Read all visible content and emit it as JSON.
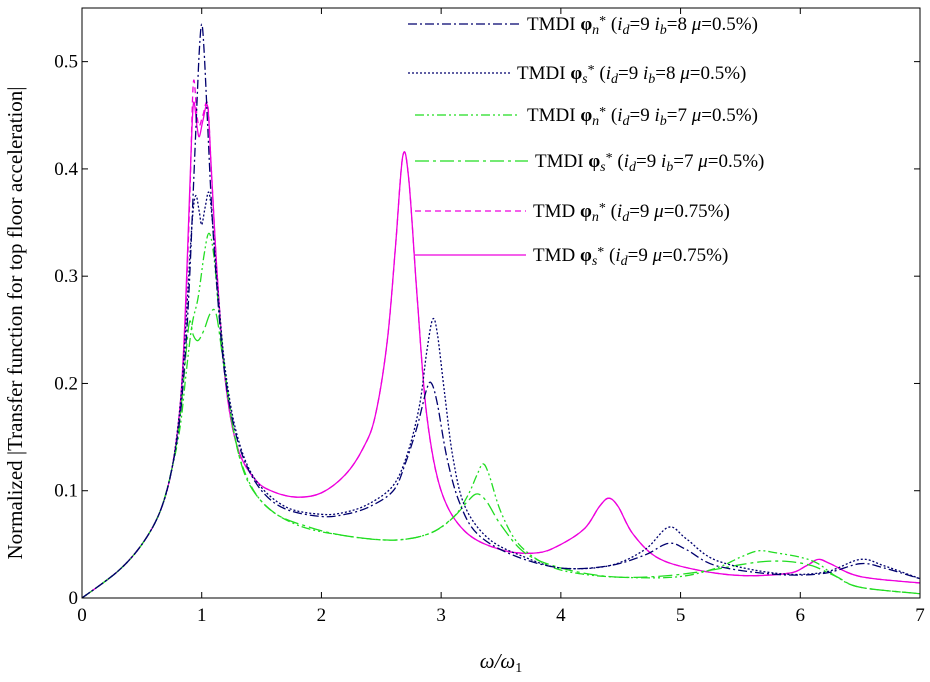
{
  "chart_data": {
    "type": "line",
    "title": "",
    "xlabel": "ω/ω1",
    "ylabel": "Normalized |Transfer function for top floor acceleration|",
    "xlim": [
      0,
      7
    ],
    "ylim": [
      0,
      0.55
    ],
    "xticks": [
      "0",
      "1",
      "2",
      "3",
      "4",
      "5",
      "6",
      "7"
    ],
    "yticks": [
      "0",
      "0.1",
      "0.2",
      "0.3",
      "0.4",
      "0.5"
    ],
    "grid": false,
    "legend_position": "top-right",
    "series": [
      {
        "name": "TMDI φn* (id=9 ib=8 μ=0.5%)",
        "color": "#00006e",
        "dash": "9,3,2,3",
        "points": [
          [
            0,
            0
          ],
          [
            0.3,
            0.025
          ],
          [
            0.5,
            0.05
          ],
          [
            0.65,
            0.08
          ],
          [
            0.75,
            0.12
          ],
          [
            0.82,
            0.17
          ],
          [
            0.87,
            0.24
          ],
          [
            0.9,
            0.3
          ],
          [
            0.93,
            0.38
          ],
          [
            0.96,
            0.46
          ],
          [
            0.98,
            0.51
          ],
          [
            1.0,
            0.535
          ],
          [
            1.02,
            0.51
          ],
          [
            1.05,
            0.44
          ],
          [
            1.08,
            0.37
          ],
          [
            1.12,
            0.3
          ],
          [
            1.18,
            0.22
          ],
          [
            1.25,
            0.17
          ],
          [
            1.35,
            0.13
          ],
          [
            1.5,
            0.1
          ],
          [
            1.7,
            0.083
          ],
          [
            2.0,
            0.076
          ],
          [
            2.2,
            0.078
          ],
          [
            2.4,
            0.085
          ],
          [
            2.6,
            0.1
          ],
          [
            2.7,
            0.125
          ],
          [
            2.8,
            0.16
          ],
          [
            2.88,
            0.195
          ],
          [
            2.92,
            0.2
          ],
          [
            2.97,
            0.18
          ],
          [
            3.05,
            0.13
          ],
          [
            3.15,
            0.09
          ],
          [
            3.3,
            0.06
          ],
          [
            3.6,
            0.04
          ],
          [
            4.0,
            0.028
          ],
          [
            4.4,
            0.03
          ],
          [
            4.7,
            0.04
          ],
          [
            4.9,
            0.051
          ],
          [
            5.05,
            0.045
          ],
          [
            5.3,
            0.03
          ],
          [
            5.8,
            0.022
          ],
          [
            6.2,
            0.023
          ],
          [
            6.5,
            0.032
          ],
          [
            6.7,
            0.028
          ],
          [
            7.0,
            0.018
          ]
        ]
      },
      {
        "name": "TMDI φs* (id=9 ib=8 μ=0.5%)",
        "color": "#00006e",
        "dash": "2,2",
        "points": [
          [
            0,
            0
          ],
          [
            0.3,
            0.025
          ],
          [
            0.5,
            0.05
          ],
          [
            0.65,
            0.08
          ],
          [
            0.75,
            0.12
          ],
          [
            0.82,
            0.18
          ],
          [
            0.87,
            0.26
          ],
          [
            0.92,
            0.35
          ],
          [
            0.95,
            0.375
          ],
          [
            0.98,
            0.36
          ],
          [
            1.0,
            0.348
          ],
          [
            1.03,
            0.365
          ],
          [
            1.06,
            0.378
          ],
          [
            1.09,
            0.35
          ],
          [
            1.14,
            0.28
          ],
          [
            1.2,
            0.21
          ],
          [
            1.3,
            0.15
          ],
          [
            1.45,
            0.11
          ],
          [
            1.7,
            0.085
          ],
          [
            2.0,
            0.078
          ],
          [
            2.2,
            0.08
          ],
          [
            2.4,
            0.088
          ],
          [
            2.6,
            0.105
          ],
          [
            2.72,
            0.135
          ],
          [
            2.82,
            0.18
          ],
          [
            2.88,
            0.23
          ],
          [
            2.93,
            0.26
          ],
          [
            2.97,
            0.245
          ],
          [
            3.03,
            0.19
          ],
          [
            3.1,
            0.13
          ],
          [
            3.2,
            0.085
          ],
          [
            3.4,
            0.055
          ],
          [
            3.7,
            0.038
          ],
          [
            4.0,
            0.028
          ],
          [
            4.4,
            0.03
          ],
          [
            4.7,
            0.045
          ],
          [
            4.9,
            0.066
          ],
          [
            5.05,
            0.055
          ],
          [
            5.3,
            0.035
          ],
          [
            5.8,
            0.023
          ],
          [
            6.2,
            0.024
          ],
          [
            6.5,
            0.036
          ],
          [
            6.7,
            0.03
          ],
          [
            7.0,
            0.018
          ]
        ]
      },
      {
        "name": "TMDI φn* (id=9 ib=7 μ=0.5%)",
        "color": "#22dd22",
        "dash": "9,3,2,3,2,3",
        "points": [
          [
            0,
            0
          ],
          [
            0.3,
            0.025
          ],
          [
            0.5,
            0.05
          ],
          [
            0.65,
            0.08
          ],
          [
            0.75,
            0.12
          ],
          [
            0.82,
            0.16
          ],
          [
            0.87,
            0.21
          ],
          [
            0.92,
            0.255
          ],
          [
            0.97,
            0.28
          ],
          [
            1.02,
            0.32
          ],
          [
            1.06,
            0.34
          ],
          [
            1.1,
            0.32
          ],
          [
            1.15,
            0.26
          ],
          [
            1.22,
            0.19
          ],
          [
            1.32,
            0.13
          ],
          [
            1.5,
            0.09
          ],
          [
            1.8,
            0.068
          ],
          [
            2.2,
            0.058
          ],
          [
            2.6,
            0.054
          ],
          [
            2.9,
            0.06
          ],
          [
            3.1,
            0.075
          ],
          [
            3.22,
            0.095
          ],
          [
            3.3,
            0.115
          ],
          [
            3.35,
            0.125
          ],
          [
            3.4,
            0.115
          ],
          [
            3.5,
            0.08
          ],
          [
            3.65,
            0.05
          ],
          [
            3.9,
            0.03
          ],
          [
            4.2,
            0.022
          ],
          [
            4.6,
            0.019
          ],
          [
            5.0,
            0.02
          ],
          [
            5.3,
            0.028
          ],
          [
            5.5,
            0.038
          ],
          [
            5.65,
            0.044
          ],
          [
            5.8,
            0.042
          ],
          [
            6.0,
            0.038
          ],
          [
            6.15,
            0.032
          ],
          [
            6.3,
            0.02
          ],
          [
            6.5,
            0.01
          ],
          [
            7.0,
            0.004
          ]
        ]
      },
      {
        "name": "TMDI φs* (id=9 ib=7 μ=0.5%)",
        "color": "#22dd22",
        "dash": "14,4,3,4",
        "points": [
          [
            0,
            0
          ],
          [
            0.3,
            0.025
          ],
          [
            0.5,
            0.05
          ],
          [
            0.65,
            0.08
          ],
          [
            0.75,
            0.12
          ],
          [
            0.82,
            0.17
          ],
          [
            0.87,
            0.23
          ],
          [
            0.9,
            0.258
          ],
          [
            0.93,
            0.245
          ],
          [
            0.97,
            0.24
          ],
          [
            1.02,
            0.25
          ],
          [
            1.07,
            0.265
          ],
          [
            1.12,
            0.265
          ],
          [
            1.18,
            0.22
          ],
          [
            1.26,
            0.16
          ],
          [
            1.38,
            0.11
          ],
          [
            1.6,
            0.08
          ],
          [
            1.9,
            0.066
          ],
          [
            2.2,
            0.058
          ],
          [
            2.6,
            0.054
          ],
          [
            2.9,
            0.06
          ],
          [
            3.1,
            0.075
          ],
          [
            3.22,
            0.09
          ],
          [
            3.3,
            0.097
          ],
          [
            3.38,
            0.09
          ],
          [
            3.5,
            0.068
          ],
          [
            3.7,
            0.042
          ],
          [
            4.0,
            0.028
          ],
          [
            4.4,
            0.02
          ],
          [
            4.8,
            0.02
          ],
          [
            5.2,
            0.025
          ],
          [
            5.5,
            0.031
          ],
          [
            5.7,
            0.034
          ],
          [
            5.9,
            0.034
          ],
          [
            6.1,
            0.03
          ],
          [
            6.3,
            0.02
          ],
          [
            6.5,
            0.01
          ],
          [
            7.0,
            0.004
          ]
        ]
      },
      {
        "name": "TMD φn* (id=9 μ=0.75%)",
        "color": "#ee00dd",
        "dash": "6,4",
        "points": [
          [
            0,
            0
          ],
          [
            0.3,
            0.025
          ],
          [
            0.5,
            0.05
          ],
          [
            0.65,
            0.08
          ],
          [
            0.75,
            0.12
          ],
          [
            0.82,
            0.18
          ],
          [
            0.86,
            0.25
          ],
          [
            0.9,
            0.37
          ],
          [
            0.93,
            0.48
          ],
          [
            0.96,
            0.45
          ],
          [
            0.98,
            0.44
          ],
          [
            1.01,
            0.45
          ],
          [
            1.05,
            0.46
          ],
          [
            1.08,
            0.4
          ],
          [
            1.13,
            0.3
          ],
          [
            1.2,
            0.2
          ],
          [
            1.3,
            0.14
          ],
          [
            1.45,
            0.11
          ],
          [
            1.6,
            0.099
          ],
          [
            1.8,
            0.094
          ],
          [
            2.0,
            0.098
          ],
          [
            2.2,
            0.115
          ],
          [
            2.35,
            0.14
          ],
          [
            2.45,
            0.17
          ],
          [
            2.55,
            0.24
          ],
          [
            2.62,
            0.33
          ],
          [
            2.68,
            0.412
          ],
          [
            2.73,
            0.39
          ],
          [
            2.8,
            0.28
          ],
          [
            2.88,
            0.17
          ],
          [
            3.0,
            0.1
          ],
          [
            3.2,
            0.062
          ],
          [
            3.5,
            0.045
          ],
          [
            3.8,
            0.042
          ],
          [
            4.0,
            0.05
          ],
          [
            4.2,
            0.065
          ],
          [
            4.32,
            0.085
          ],
          [
            4.4,
            0.093
          ],
          [
            4.48,
            0.085
          ],
          [
            4.6,
            0.06
          ],
          [
            4.8,
            0.038
          ],
          [
            5.1,
            0.027
          ],
          [
            5.5,
            0.021
          ],
          [
            5.9,
            0.023
          ],
          [
            6.05,
            0.03
          ],
          [
            6.15,
            0.036
          ],
          [
            6.25,
            0.032
          ],
          [
            6.5,
            0.02
          ],
          [
            7.0,
            0.014
          ]
        ]
      },
      {
        "name": "TMD φs* (id=9 μ=0.75%)",
        "color": "#ee00dd",
        "dash": "",
        "points": [
          [
            0,
            0
          ],
          [
            0.3,
            0.025
          ],
          [
            0.5,
            0.05
          ],
          [
            0.65,
            0.08
          ],
          [
            0.75,
            0.12
          ],
          [
            0.82,
            0.18
          ],
          [
            0.86,
            0.26
          ],
          [
            0.9,
            0.38
          ],
          [
            0.93,
            0.46
          ],
          [
            0.96,
            0.44
          ],
          [
            0.98,
            0.43
          ],
          [
            1.01,
            0.445
          ],
          [
            1.05,
            0.458
          ],
          [
            1.08,
            0.4
          ],
          [
            1.13,
            0.3
          ],
          [
            1.2,
            0.2
          ],
          [
            1.3,
            0.14
          ],
          [
            1.45,
            0.11
          ],
          [
            1.6,
            0.099
          ],
          [
            1.8,
            0.094
          ],
          [
            2.0,
            0.098
          ],
          [
            2.2,
            0.115
          ],
          [
            2.35,
            0.14
          ],
          [
            2.45,
            0.17
          ],
          [
            2.55,
            0.24
          ],
          [
            2.62,
            0.33
          ],
          [
            2.68,
            0.412
          ],
          [
            2.73,
            0.39
          ],
          [
            2.8,
            0.28
          ],
          [
            2.88,
            0.17
          ],
          [
            3.0,
            0.1
          ],
          [
            3.2,
            0.062
          ],
          [
            3.5,
            0.045
          ],
          [
            3.8,
            0.042
          ],
          [
            4.0,
            0.05
          ],
          [
            4.2,
            0.065
          ],
          [
            4.32,
            0.085
          ],
          [
            4.4,
            0.093
          ],
          [
            4.48,
            0.085
          ],
          [
            4.6,
            0.06
          ],
          [
            4.8,
            0.038
          ],
          [
            5.1,
            0.027
          ],
          [
            5.5,
            0.021
          ],
          [
            5.9,
            0.023
          ],
          [
            6.05,
            0.03
          ],
          [
            6.15,
            0.036
          ],
          [
            6.25,
            0.032
          ],
          [
            6.5,
            0.02
          ],
          [
            7.0,
            0.014
          ]
        ]
      }
    ]
  }
}
